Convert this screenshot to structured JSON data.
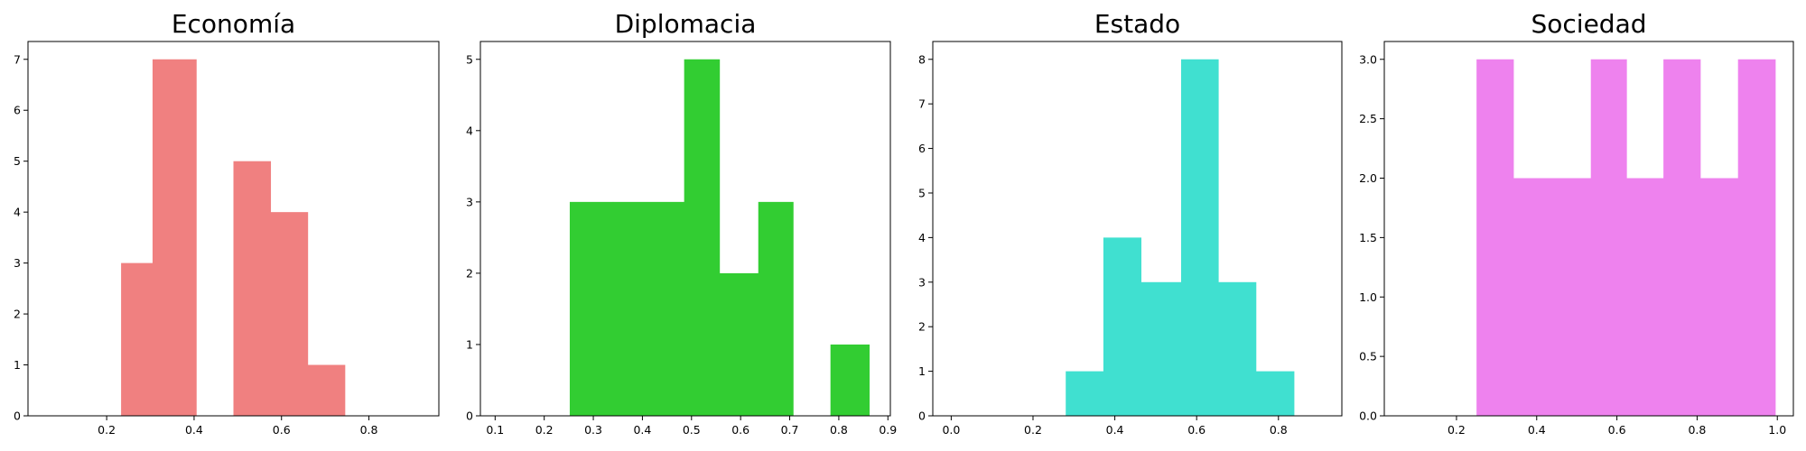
{
  "chart_data": [
    {
      "type": "bar",
      "title": "Economía",
      "color": "#f08080",
      "bins": [
        {
          "x0": 0.233,
          "x1": 0.305,
          "count": 3
        },
        {
          "x0": 0.305,
          "x1": 0.405,
          "count": 7
        },
        {
          "x0": 0.405,
          "x1": 0.49,
          "count": 0
        },
        {
          "x0": 0.49,
          "x1": 0.575,
          "count": 5
        },
        {
          "x0": 0.575,
          "x1": 0.66,
          "count": 4
        },
        {
          "x0": 0.66,
          "x1": 0.745,
          "count": 1
        }
      ],
      "xlim": [
        0.02,
        0.96
      ],
      "ylim": [
        0,
        7.35
      ],
      "xticks": [
        0.2,
        0.4,
        0.6,
        0.8
      ],
      "xtick_labels": [
        "0.2",
        "0.4",
        "0.6",
        "0.8"
      ],
      "yticks": [
        0,
        1,
        2,
        3,
        4,
        5,
        6,
        7
      ],
      "ytick_labels": [
        "0",
        "1",
        "2",
        "3",
        "4",
        "5",
        "6",
        "7"
      ]
    },
    {
      "type": "bar",
      "title": "Diplomacia",
      "color": "#32cd32",
      "bins": [
        {
          "x0": 0.252,
          "x1": 0.34,
          "count": 3
        },
        {
          "x0": 0.34,
          "x1": 0.485,
          "count": 3
        },
        {
          "x0": 0.485,
          "x1": 0.557,
          "count": 5
        },
        {
          "x0": 0.557,
          "x1": 0.636,
          "count": 2
        },
        {
          "x0": 0.636,
          "x1": 0.707,
          "count": 3
        },
        {
          "x0": 0.707,
          "x1": 0.783,
          "count": 0
        },
        {
          "x0": 0.783,
          "x1": 0.862,
          "count": 1
        }
      ],
      "xlim": [
        0.07,
        0.905
      ],
      "ylim": [
        0,
        5.25
      ],
      "xticks": [
        0.1,
        0.2,
        0.3,
        0.4,
        0.5,
        0.6,
        0.7,
        0.8,
        0.9
      ],
      "xtick_labels": [
        "0.1",
        "0.2",
        "0.3",
        "0.4",
        "0.5",
        "0.6",
        "0.7",
        "0.8",
        "0.9"
      ],
      "yticks": [
        0,
        1,
        2,
        3,
        4,
        5
      ],
      "ytick_labels": [
        "0",
        "1",
        "2",
        "3",
        "4",
        "5"
      ]
    },
    {
      "type": "bar",
      "title": "Estado",
      "color": "#40e0d0",
      "bins": [
        {
          "x0": 0.28,
          "x1": 0.372,
          "count": 1
        },
        {
          "x0": 0.372,
          "x1": 0.464,
          "count": 4
        },
        {
          "x0": 0.464,
          "x1": 0.562,
          "count": 3
        },
        {
          "x0": 0.562,
          "x1": 0.653,
          "count": 8
        },
        {
          "x0": 0.653,
          "x1": 0.745,
          "count": 3
        },
        {
          "x0": 0.745,
          "x1": 0.838,
          "count": 1
        }
      ],
      "xlim": [
        -0.045,
        0.955
      ],
      "ylim": [
        0,
        8.4
      ],
      "xticks": [
        0.0,
        0.2,
        0.4,
        0.6,
        0.8
      ],
      "xtick_labels": [
        "0.0",
        "0.2",
        "0.4",
        "0.6",
        "0.8"
      ],
      "yticks": [
        0,
        1,
        2,
        3,
        4,
        5,
        6,
        7,
        8
      ],
      "ytick_labels": [
        "0",
        "1",
        "2",
        "3",
        "4",
        "5",
        "6",
        "7",
        "8"
      ]
    },
    {
      "type": "bar",
      "title": "Sociedad",
      "color": "#ee82ee",
      "bins": [
        {
          "x0": 0.25,
          "x1": 0.342,
          "count": 3
        },
        {
          "x0": 0.342,
          "x1": 0.535,
          "count": 2
        },
        {
          "x0": 0.535,
          "x1": 0.624,
          "count": 3
        },
        {
          "x0": 0.624,
          "x1": 0.716,
          "count": 2
        },
        {
          "x0": 0.716,
          "x1": 0.808,
          "count": 3
        },
        {
          "x0": 0.808,
          "x1": 0.902,
          "count": 2
        },
        {
          "x0": 0.902,
          "x1": 0.995,
          "count": 3
        }
      ],
      "xlim": [
        0.02,
        1.04
      ],
      "ylim": [
        0,
        3.15
      ],
      "xticks": [
        0.2,
        0.4,
        0.6,
        0.8,
        1.0
      ],
      "xtick_labels": [
        "0.2",
        "0.4",
        "0.6",
        "0.8",
        "1.0"
      ],
      "yticks": [
        0.0,
        0.5,
        1.0,
        1.5,
        2.0,
        2.5,
        3.0
      ],
      "ytick_labels": [
        "0.0",
        "0.5",
        "1.0",
        "1.5",
        "2.0",
        "2.5",
        "3.0"
      ]
    }
  ]
}
